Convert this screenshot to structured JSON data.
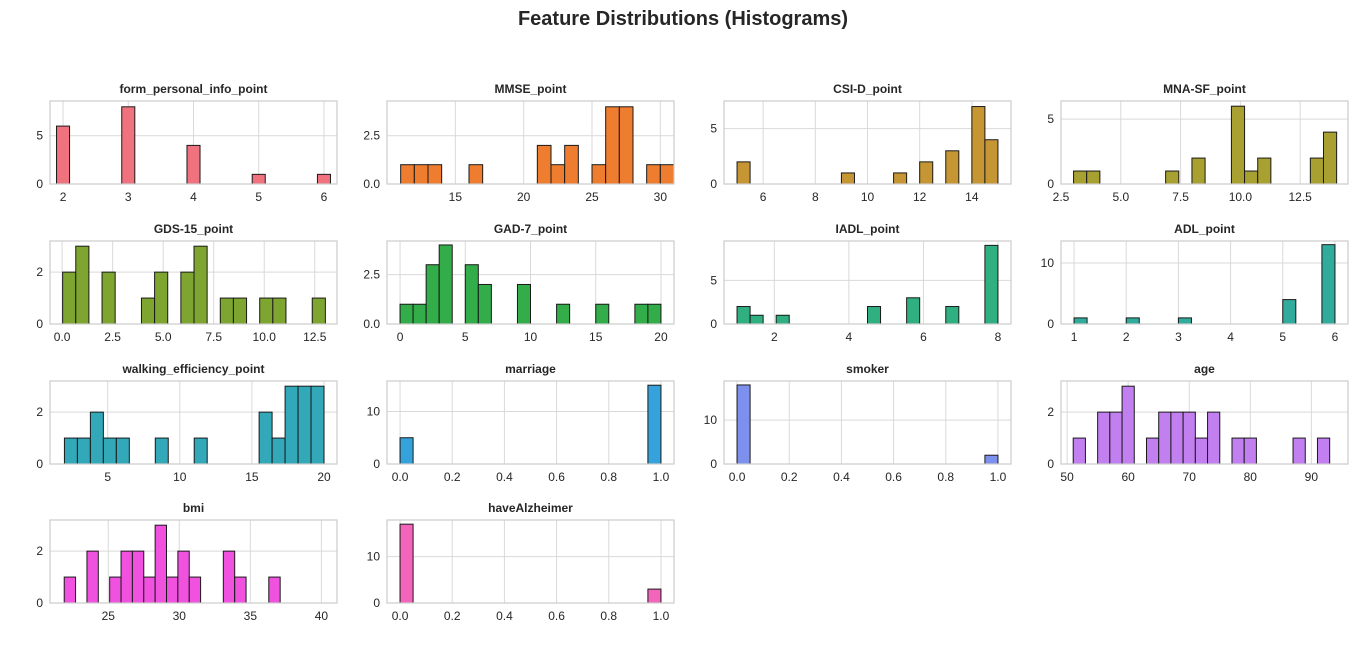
{
  "title": "Feature Distributions (Histograms)",
  "chart_data": [
    {
      "type": "bar",
      "title": "form_personal_info_point",
      "color": "#f0727f",
      "xlim": [
        1.8,
        6.2
      ],
      "ylim": [
        0,
        8.6
      ],
      "xticks": [
        2,
        3,
        4,
        5,
        6
      ],
      "yticks": [
        0,
        5
      ],
      "bars": [
        [
          2,
          6
        ],
        [
          3,
          8
        ],
        [
          4,
          4
        ],
        [
          5,
          1
        ],
        [
          6,
          1
        ]
      ],
      "bar_width": 0.2
    },
    {
      "type": "bar",
      "title": "MMSE_point",
      "color": "#ee7d2f",
      "xlim": [
        10,
        31
      ],
      "ylim": [
        0,
        4.3
      ],
      "xticks": [
        15,
        20,
        25,
        30
      ],
      "yticks": [
        0,
        2.5
      ],
      "bars": [
        [
          11.5,
          1
        ],
        [
          12.5,
          1
        ],
        [
          13.5,
          1
        ],
        [
          16.5,
          1
        ],
        [
          21.5,
          2
        ],
        [
          22.5,
          1
        ],
        [
          23.5,
          2
        ],
        [
          25.5,
          1
        ],
        [
          26.5,
          4
        ],
        [
          27.5,
          4
        ],
        [
          29.5,
          1
        ],
        [
          30.5,
          1
        ]
      ],
      "bar_width": 1
    },
    {
      "type": "bar",
      "title": "CSI-D_point",
      "color": "#c59633",
      "xlim": [
        4.5,
        15.5
      ],
      "ylim": [
        0,
        7.5
      ],
      "xticks": [
        6,
        8,
        10,
        12,
        14
      ],
      "yticks": [
        0,
        5
      ],
      "bars": [
        [
          5.25,
          2
        ],
        [
          9.25,
          1
        ],
        [
          11.25,
          1
        ],
        [
          12.25,
          2
        ],
        [
          13.25,
          3
        ],
        [
          14.25,
          7
        ],
        [
          14.75,
          4
        ]
      ],
      "bar_width": 0.5
    },
    {
      "type": "bar",
      "title": "MNA-SF_point",
      "color": "#a8a031",
      "xlim": [
        2.5,
        14.5
      ],
      "ylim": [
        0,
        6.4
      ],
      "xticks": [
        2.5,
        5.0,
        7.5,
        10.0,
        12.5
      ],
      "yticks": [
        0,
        5
      ],
      "bars": [
        [
          3.3,
          1
        ],
        [
          3.85,
          1
        ],
        [
          7.15,
          1
        ],
        [
          8.25,
          2
        ],
        [
          9.9,
          6
        ],
        [
          10.45,
          1
        ],
        [
          11.0,
          2
        ],
        [
          13.2,
          2
        ],
        [
          13.75,
          4
        ]
      ],
      "bar_width": 0.55
    },
    {
      "type": "bar",
      "title": "GDS-15_point",
      "color": "#7ea52f",
      "xlim": [
        -0.6,
        13.6
      ],
      "ylim": [
        0,
        3.2
      ],
      "xticks": [
        0.0,
        2.5,
        5.0,
        7.5,
        10.0,
        12.5
      ],
      "yticks": [
        0,
        2
      ],
      "bars": [
        [
          0.35,
          2
        ],
        [
          1.0,
          3
        ],
        [
          2.3,
          2
        ],
        [
          4.25,
          1
        ],
        [
          4.9,
          2
        ],
        [
          6.2,
          2
        ],
        [
          6.85,
          3
        ],
        [
          8.15,
          1
        ],
        [
          8.8,
          1
        ],
        [
          10.1,
          1
        ],
        [
          10.75,
          1
        ],
        [
          12.7,
          1
        ]
      ],
      "bar_width": 0.65
    },
    {
      "type": "bar",
      "title": "GAD-7_point",
      "color": "#33ac4a",
      "xlim": [
        -1,
        21
      ],
      "ylim": [
        0,
        4.2
      ],
      "xticks": [
        0,
        5,
        10,
        15,
        20
      ],
      "yticks": [
        0,
        2.5
      ],
      "bars": [
        [
          0.5,
          1
        ],
        [
          1.5,
          1
        ],
        [
          2.5,
          3
        ],
        [
          3.5,
          4
        ],
        [
          5.5,
          3
        ],
        [
          6.5,
          2
        ],
        [
          9.5,
          2
        ],
        [
          12.5,
          1
        ],
        [
          15.5,
          1
        ],
        [
          18.5,
          1
        ],
        [
          19.5,
          1
        ]
      ],
      "bar_width": 1
    },
    {
      "type": "bar",
      "title": "IADL_point",
      "color": "#30b081",
      "xlim": [
        0.65,
        8.35
      ],
      "ylim": [
        0,
        9.5
      ],
      "xticks": [
        2,
        4,
        6,
        8
      ],
      "yticks": [
        0,
        5
      ],
      "bars": [
        [
          1.175,
          2
        ],
        [
          1.525,
          1
        ],
        [
          2.225,
          1
        ],
        [
          4.675,
          2
        ],
        [
          5.725,
          3
        ],
        [
          6.775,
          2
        ],
        [
          7.825,
          9
        ]
      ],
      "bar_width": 0.35
    },
    {
      "type": "bar",
      "title": "ADL_point",
      "color": "#31ac9c",
      "xlim": [
        0.75,
        6.25
      ],
      "ylim": [
        0,
        13.6
      ],
      "xticks": [
        1,
        2,
        3,
        4,
        5,
        6
      ],
      "yticks": [
        0,
        10
      ],
      "bars": [
        [
          1.125,
          1
        ],
        [
          2.125,
          1
        ],
        [
          3.125,
          1
        ],
        [
          5.125,
          4
        ],
        [
          5.875,
          13
        ]
      ],
      "bar_width": 0.25
    },
    {
      "type": "bar",
      "title": "walking_efficiency_point",
      "color": "#32a8b9",
      "xlim": [
        1.0,
        20.9
      ],
      "ylim": [
        0,
        3.2
      ],
      "xticks": [
        5,
        10,
        15,
        20
      ],
      "yticks": [
        0,
        2
      ],
      "bars": [
        [
          2.45,
          1
        ],
        [
          3.35,
          1
        ],
        [
          4.25,
          2
        ],
        [
          5.15,
          1
        ],
        [
          6.05,
          1
        ],
        [
          8.75,
          1
        ],
        [
          11.45,
          1
        ],
        [
          15.95,
          2
        ],
        [
          16.85,
          1
        ],
        [
          17.75,
          3
        ],
        [
          18.65,
          3
        ],
        [
          19.55,
          3
        ]
      ],
      "bar_width": 0.9
    },
    {
      "type": "bar",
      "title": "marriage",
      "color": "#35a2dc",
      "xlim": [
        -0.05,
        1.05
      ],
      "ylim": [
        0,
        15.8
      ],
      "xticks": [
        0.0,
        0.2,
        0.4,
        0.6,
        0.8,
        1.0
      ],
      "yticks": [
        0,
        10
      ],
      "bars": [
        [
          0.025,
          5
        ],
        [
          0.975,
          15
        ]
      ],
      "bar_width": 0.05
    },
    {
      "type": "bar",
      "title": "smoker",
      "color": "#7d90ee",
      "xlim": [
        -0.05,
        1.05
      ],
      "ylim": [
        0,
        18.9
      ],
      "xticks": [
        0.0,
        0.2,
        0.4,
        0.6,
        0.8,
        1.0
      ],
      "yticks": [
        0,
        10
      ],
      "bars": [
        [
          0.025,
          18
        ],
        [
          0.975,
          2
        ]
      ],
      "bar_width": 0.05
    },
    {
      "type": "bar",
      "title": "age",
      "color": "#c17ff0",
      "xlim": [
        49,
        96
      ],
      "ylim": [
        0,
        3.2
      ],
      "xticks": [
        50,
        60,
        70,
        80,
        90
      ],
      "yticks": [
        0,
        2
      ],
      "bars": [
        [
          52.0,
          1
        ],
        [
          56.0,
          2
        ],
        [
          58.0,
          2
        ],
        [
          60.0,
          3
        ],
        [
          64.0,
          1
        ],
        [
          66.0,
          2
        ],
        [
          68.0,
          2
        ],
        [
          70.0,
          2
        ],
        [
          72.0,
          1
        ],
        [
          74.0,
          2
        ],
        [
          78.0,
          1
        ],
        [
          80.0,
          1
        ],
        [
          88.0,
          1
        ],
        [
          92.0,
          1
        ]
      ],
      "bar_width": 2
    },
    {
      "type": "bar",
      "title": "bmi",
      "color": "#f051df",
      "xlim": [
        20.9,
        41.1
      ],
      "ylim": [
        0,
        3.2
      ],
      "xticks": [
        25,
        30,
        35,
        40
      ],
      "yticks": [
        0,
        2
      ],
      "bars": [
        [
          22.3,
          1
        ],
        [
          23.9,
          2
        ],
        [
          25.5,
          1
        ],
        [
          26.3,
          2
        ],
        [
          27.1,
          2
        ],
        [
          27.9,
          1
        ],
        [
          28.7,
          3
        ],
        [
          29.5,
          1
        ],
        [
          30.3,
          2
        ],
        [
          31.1,
          1
        ],
        [
          33.5,
          2
        ],
        [
          34.3,
          1
        ],
        [
          36.7,
          1
        ]
      ],
      "bar_width": 0.8
    },
    {
      "type": "bar",
      "title": "haveAlzheimer",
      "color": "#f265bb",
      "xlim": [
        -0.05,
        1.05
      ],
      "ylim": [
        0,
        17.9
      ],
      "xticks": [
        0.0,
        0.2,
        0.4,
        0.6,
        0.8,
        1.0
      ],
      "yticks": [
        0,
        10
      ],
      "bars": [
        [
          0.025,
          17
        ],
        [
          0.975,
          3
        ]
      ],
      "bar_width": 0.05
    }
  ]
}
